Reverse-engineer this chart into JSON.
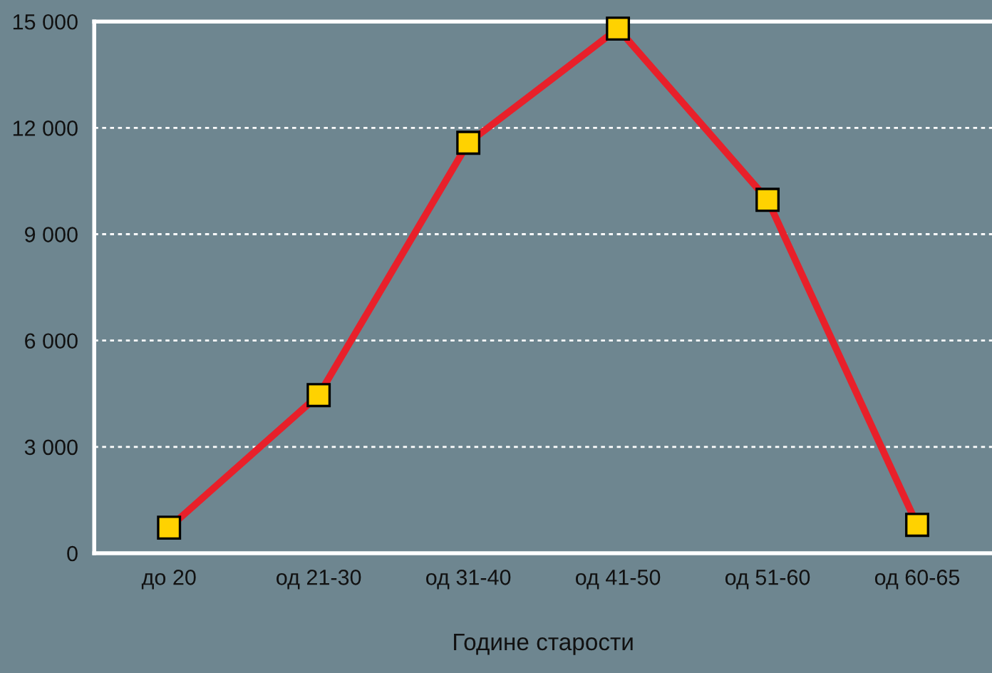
{
  "chart_data": {
    "type": "line",
    "xlabel": "Године старости",
    "categories": [
      "до 20",
      "од 21-30",
      "од 31-40",
      "од 41-50",
      "од 51-60",
      "од 60-65"
    ],
    "series": [
      {
        "color": "#e8202a",
        "values": [
          720,
          4460,
          11580,
          14800,
          9970,
          800
        ]
      }
    ],
    "marker": "square",
    "ylim": [
      0,
      15000
    ],
    "yticks": [
      0,
      {
        "value": 3000,
        "label": "3 000"
      },
      {
        "value": 6000,
        "label": "6 000"
      },
      {
        "value": 9000,
        "label": "9 000"
      },
      {
        "value": 12000,
        "label": "12 000"
      },
      {
        "value": 15000,
        "label": "15 000"
      }
    ],
    "grid": "y",
    "legend": false
  }
}
